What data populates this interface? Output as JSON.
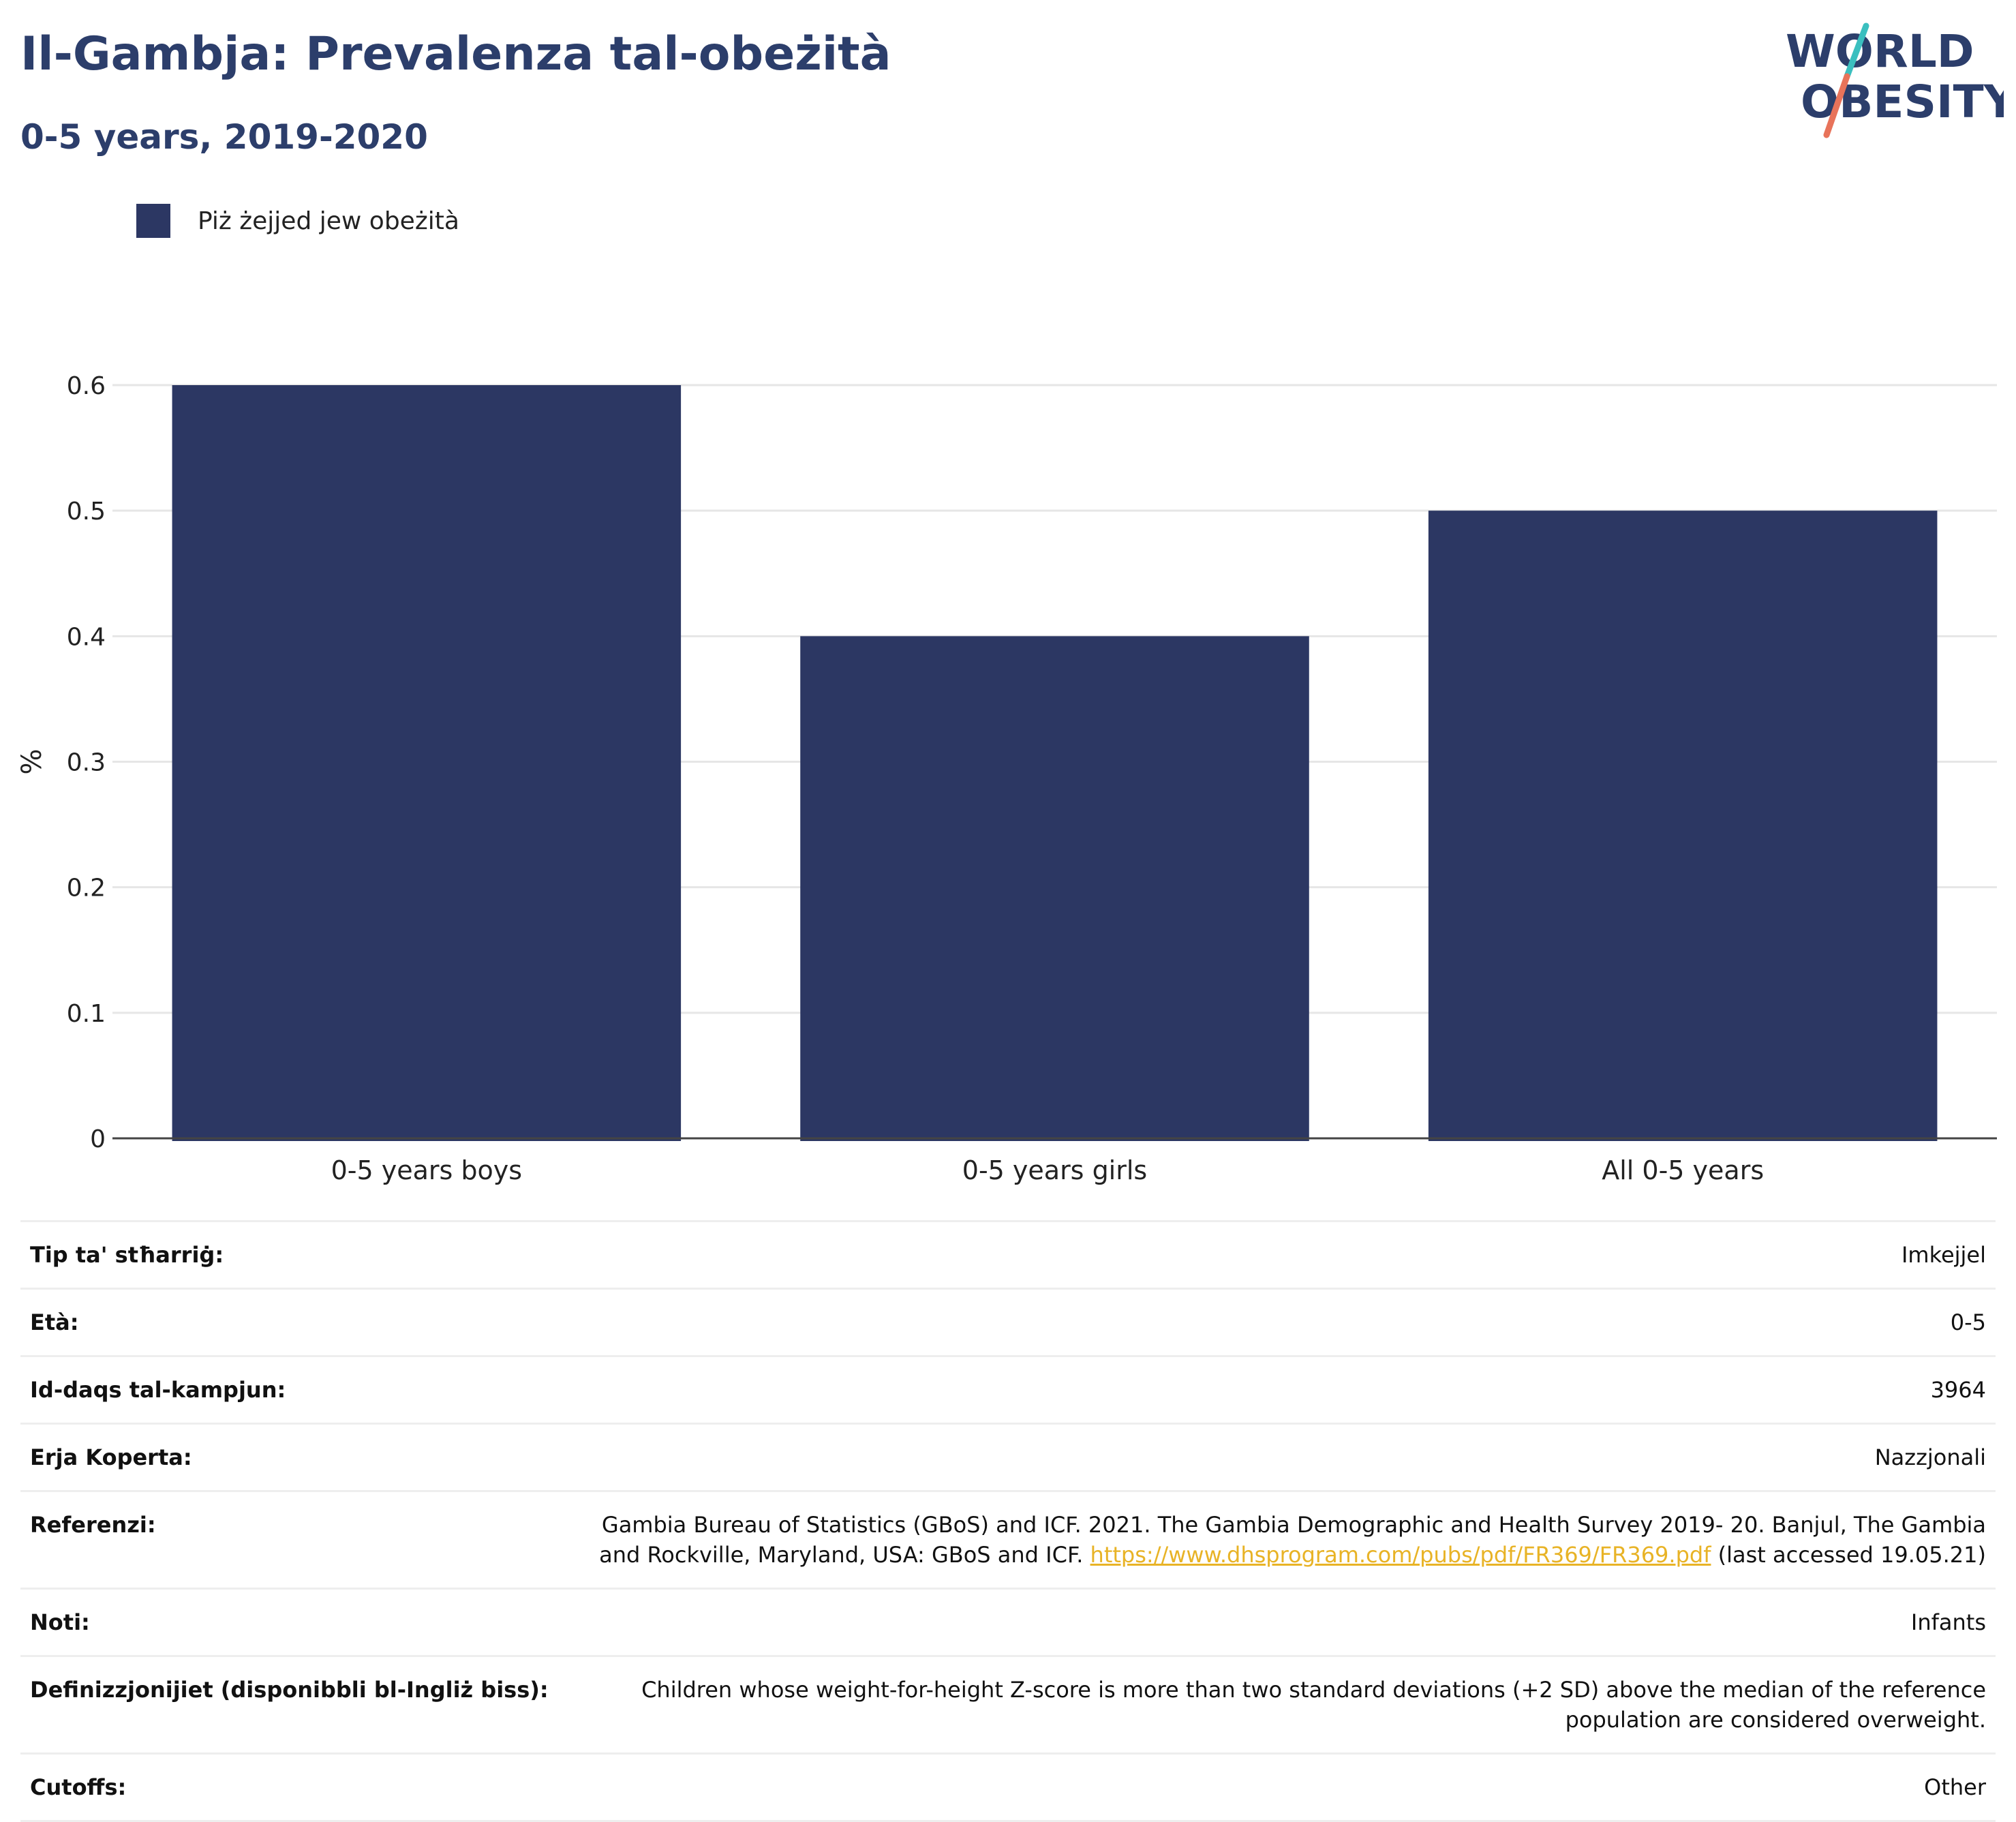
{
  "header": {
    "title": "Il-Gambja: Prevalenza tal-obeżità",
    "subtitle": "0-5 years, 2019-2020"
  },
  "logo": {
    "line1": "WORLD",
    "line2": "OBESITY",
    "colors": {
      "text": "#2c3e6b",
      "slash_top": "#3bbfbf",
      "slash_bottom": "#e8735a"
    }
  },
  "legend": {
    "label": "Piż żejjed jew obeżità",
    "color": "#2c3763"
  },
  "chart_data": {
    "type": "bar",
    "categories": [
      "0-5 years boys",
      "0-5 years girls",
      "All 0-5 years"
    ],
    "series": [
      {
        "name": "Piż żejjed jew obeżità",
        "values": [
          0.6,
          0.4,
          0.5
        ]
      }
    ],
    "title": "Il-Gambja: Prevalenza tal-obeżità",
    "subtitle": "0-5 years, 2019-2020",
    "xlabel": "",
    "ylabel": "%",
    "ylim": [
      0,
      0.6
    ],
    "yticks": [
      0,
      0.1,
      0.2,
      0.3,
      0.4,
      0.5,
      0.6
    ],
    "ytick_labels": [
      "0",
      "0.1",
      "0.2",
      "0.3",
      "0.4",
      "0.5",
      "0.6"
    ],
    "grid": true,
    "legend": "top-left",
    "bar_color": "#2c3763"
  },
  "details": [
    {
      "key": "Tip ta' stħarriġ:",
      "value": "Imkejjel"
    },
    {
      "key": "Età:",
      "value": "0-5"
    },
    {
      "key": "Id-daqs tal-kampjun:",
      "value": "3964"
    },
    {
      "key": "Erja Koperta:",
      "value": "Nazzjonali"
    },
    {
      "key": "Referenzi:",
      "value": "Gambia Bureau of Statistics (GBoS) and ICF. 2021. The Gambia Demographic and Health Survey 2019- 20. Banjul, The Gambia and Rockville, Maryland, USA: GBoS and ICF.",
      "link": "https://www.dhsprogram.com/pubs/pdf/FR369/FR369.pdf",
      "suffix": "(last accessed 19.05.21)"
    },
    {
      "key": "Noti:",
      "value": "Infants"
    },
    {
      "key": "Definizzjonijiet (disponibbli bl-Ingliż biss):",
      "value": "Children whose weight-for-height Z-score is more than two standard deviations (+2 SD) above the median of the reference population are considered overweight."
    },
    {
      "key": "Cutoffs:",
      "value": "Other"
    }
  ]
}
